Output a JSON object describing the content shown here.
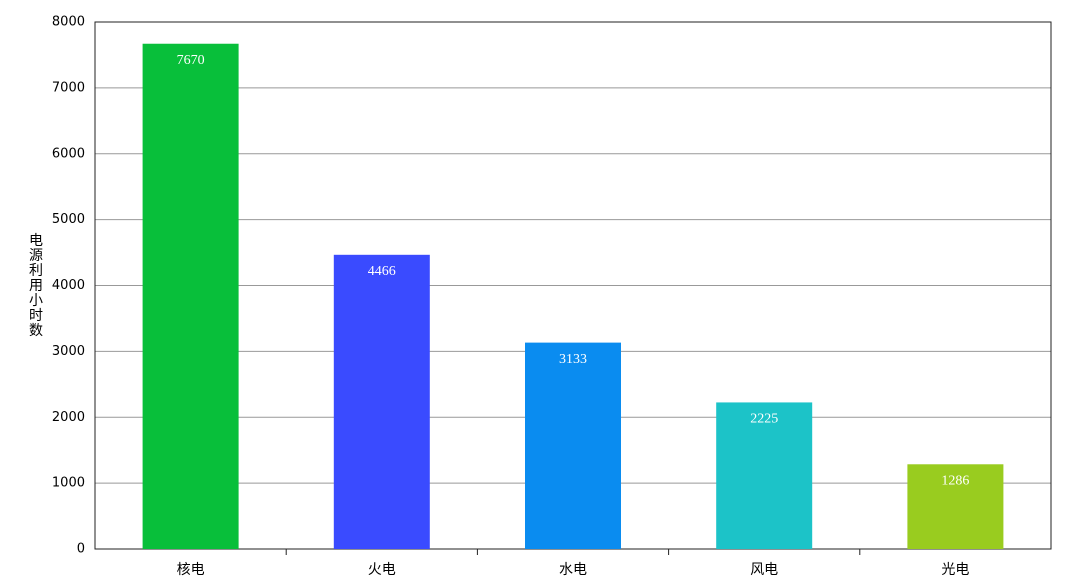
{
  "chart_data": {
    "type": "bar",
    "y_label": "电源利用小时数",
    "categories": [
      "核电",
      "火电",
      "水电",
      "风电",
      "光电"
    ],
    "values": [
      7670,
      4466,
      3133,
      2225,
      1286
    ],
    "colors": [
      "#08bf3a",
      "#3a4bff",
      "#0a8cf0",
      "#1cc3c8",
      "#99cc1f"
    ],
    "ylim": [
      0,
      8000
    ],
    "yticks": [
      0,
      1000,
      2000,
      3000,
      4000,
      5000,
      6000,
      7000,
      8000
    ],
    "grid": true
  }
}
